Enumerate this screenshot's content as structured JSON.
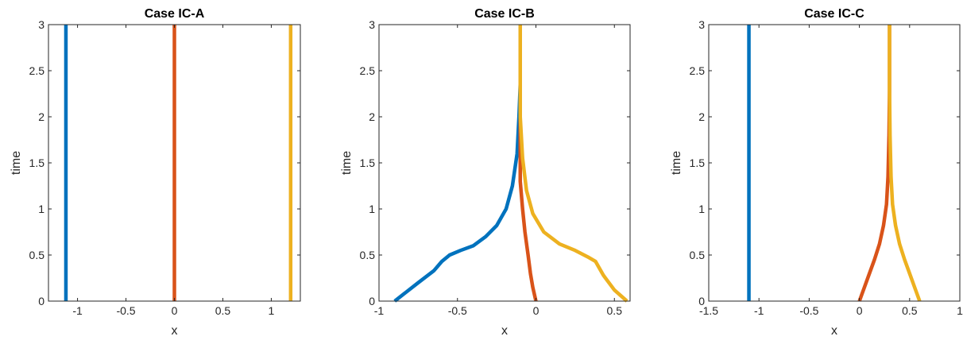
{
  "chart_data": [
    {
      "type": "line",
      "title": "Case IC-A",
      "xlabel": "x",
      "ylabel": "time",
      "xlim": [
        -1.3,
        1.3
      ],
      "ylim": [
        0,
        3
      ],
      "xticks": [
        -1,
        -0.5,
        0,
        0.5,
        1
      ],
      "xtick_labels": [
        "-1",
        "-0.5",
        "0",
        "0.5",
        "1"
      ],
      "yticks": [
        0,
        0.5,
        1,
        1.5,
        2,
        2.5,
        3
      ],
      "ytick_labels": [
        "0",
        "0.5",
        "1",
        "1.5",
        "2",
        "2.5",
        "3"
      ],
      "grid": false,
      "series": [
        {
          "color": "#0072BD",
          "x": [
            -1.12,
            -1.12
          ],
          "y": [
            0,
            3
          ]
        },
        {
          "color": "#D95319",
          "x": [
            0,
            0
          ],
          "y": [
            0,
            3
          ]
        },
        {
          "color": "#EDB120",
          "x": [
            1.2,
            1.2
          ],
          "y": [
            0,
            3
          ]
        }
      ]
    },
    {
      "type": "line",
      "title": "Case IC-B",
      "xlabel": "x",
      "ylabel": "time",
      "xlim": [
        -1,
        0.6
      ],
      "ylim": [
        0,
        3
      ],
      "xticks": [
        -1,
        -0.5,
        0,
        0.5
      ],
      "xtick_labels": [
        "-1",
        "-0.5",
        "0",
        "0.5"
      ],
      "yticks": [
        0,
        0.5,
        1,
        1.5,
        2,
        2.5,
        3
      ],
      "ytick_labels": [
        "0",
        "0.5",
        "1",
        "1.5",
        "2",
        "2.5",
        "3"
      ],
      "grid": false,
      "series": [
        {
          "color": "#0072BD",
          "x": [
            -0.9,
            -0.75,
            -0.65,
            -0.6,
            -0.55,
            -0.48,
            -0.4,
            -0.32,
            -0.25,
            -0.19,
            -0.15,
            -0.12,
            -0.108,
            -0.1,
            -0.1
          ],
          "y": [
            0,
            0.2,
            0.33,
            0.43,
            0.5,
            0.55,
            0.6,
            0.7,
            0.82,
            1.0,
            1.25,
            1.6,
            2.0,
            2.35,
            3
          ]
        },
        {
          "color": "#D95319",
          "x": [
            0,
            -0.02,
            -0.035,
            -0.05,
            -0.07,
            -0.085,
            -0.1,
            -0.1
          ],
          "y": [
            0,
            0.15,
            0.3,
            0.5,
            0.75,
            1.0,
            1.3,
            3
          ]
        },
        {
          "color": "#EDB120",
          "x": [
            0.58,
            0.5,
            0.43,
            0.38,
            0.33,
            0.25,
            0.15,
            0.05,
            -0.02,
            -0.06,
            -0.085,
            -0.1,
            -0.1
          ],
          "y": [
            0,
            0.12,
            0.28,
            0.43,
            0.48,
            0.55,
            0.62,
            0.75,
            0.95,
            1.2,
            1.55,
            2.0,
            3
          ]
        }
      ]
    },
    {
      "type": "line",
      "title": "Case IC-C",
      "xlabel": "x",
      "ylabel": "time",
      "xlim": [
        -1.5,
        1
      ],
      "ylim": [
        0,
        3
      ],
      "xticks": [
        -1.5,
        -1,
        -0.5,
        0,
        0.5,
        1
      ],
      "xtick_labels": [
        "-1.5",
        "-1",
        "-0.5",
        "0",
        "0.5",
        "1"
      ],
      "yticks": [
        0,
        0.5,
        1,
        1.5,
        2,
        2.5,
        3
      ],
      "ytick_labels": [
        "0",
        "0.5",
        "1",
        "1.5",
        "2",
        "2.5",
        "3"
      ],
      "grid": false,
      "series": [
        {
          "color": "#0072BD",
          "x": [
            -1.1,
            -1.1
          ],
          "y": [
            0,
            3
          ]
        },
        {
          "color": "#D95319",
          "x": [
            0,
            0.05,
            0.1,
            0.15,
            0.2,
            0.24,
            0.27,
            0.285,
            0.295,
            0.3,
            0.3
          ],
          "y": [
            0,
            0.15,
            0.3,
            0.45,
            0.62,
            0.82,
            1.05,
            1.35,
            1.8,
            2.3,
            3
          ]
        },
        {
          "color": "#EDB120",
          "x": [
            0.6,
            0.55,
            0.5,
            0.45,
            0.4,
            0.36,
            0.33,
            0.315,
            0.305,
            0.3,
            0.3
          ],
          "y": [
            0,
            0.15,
            0.3,
            0.45,
            0.62,
            0.82,
            1.05,
            1.35,
            1.8,
            2.3,
            3
          ]
        }
      ]
    }
  ]
}
